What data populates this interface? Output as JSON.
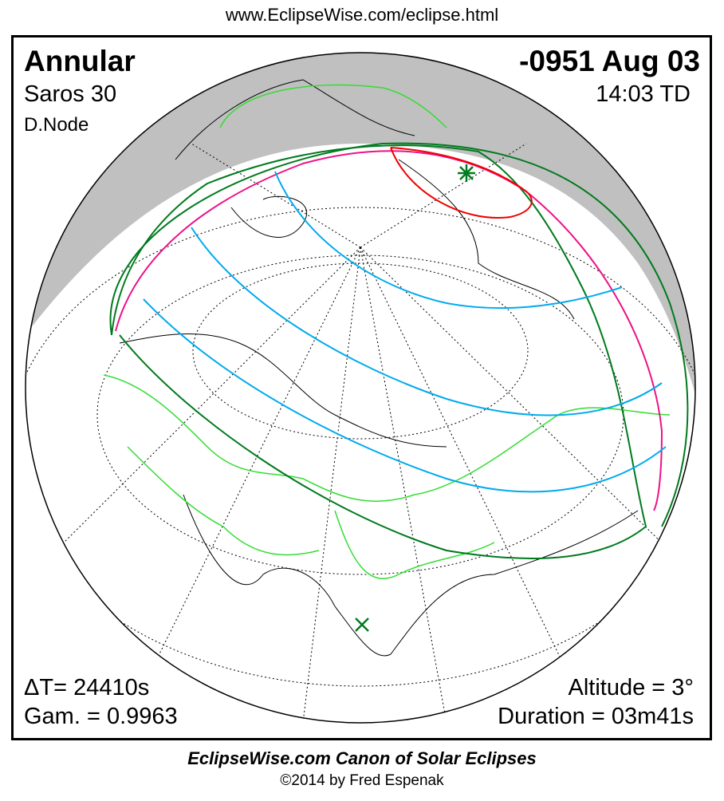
{
  "url": "www.EclipseWise.com/eclipse.html",
  "eclipse": {
    "type": "Annular",
    "date": "-0951 Aug 03",
    "saros": "Saros  30",
    "time": "14:03 TD",
    "node": "D.Node",
    "delta_t": "ΔT=  24410s",
    "gamma": "Gam. = 0.9963",
    "altitude": "Altitude =  3°",
    "duration": "Duration = 03m41s"
  },
  "colors": {
    "night": "#c0c0c0",
    "penumbra_limit": "#007a1e",
    "annular_path": "#00aaee",
    "rise_set": "#ee1188",
    "max_eclipse_region": "#ee0000",
    "borders": "#33dd33",
    "greatest_eclipse_marker": "#007a1e"
  },
  "markers": {
    "greatest_eclipse": "star-marker",
    "subsolar": "x-marker"
  },
  "footer": {
    "title": "EclipseWise.com Canon of Solar Eclipses",
    "copyright": "©2014 by Fred Espenak"
  }
}
